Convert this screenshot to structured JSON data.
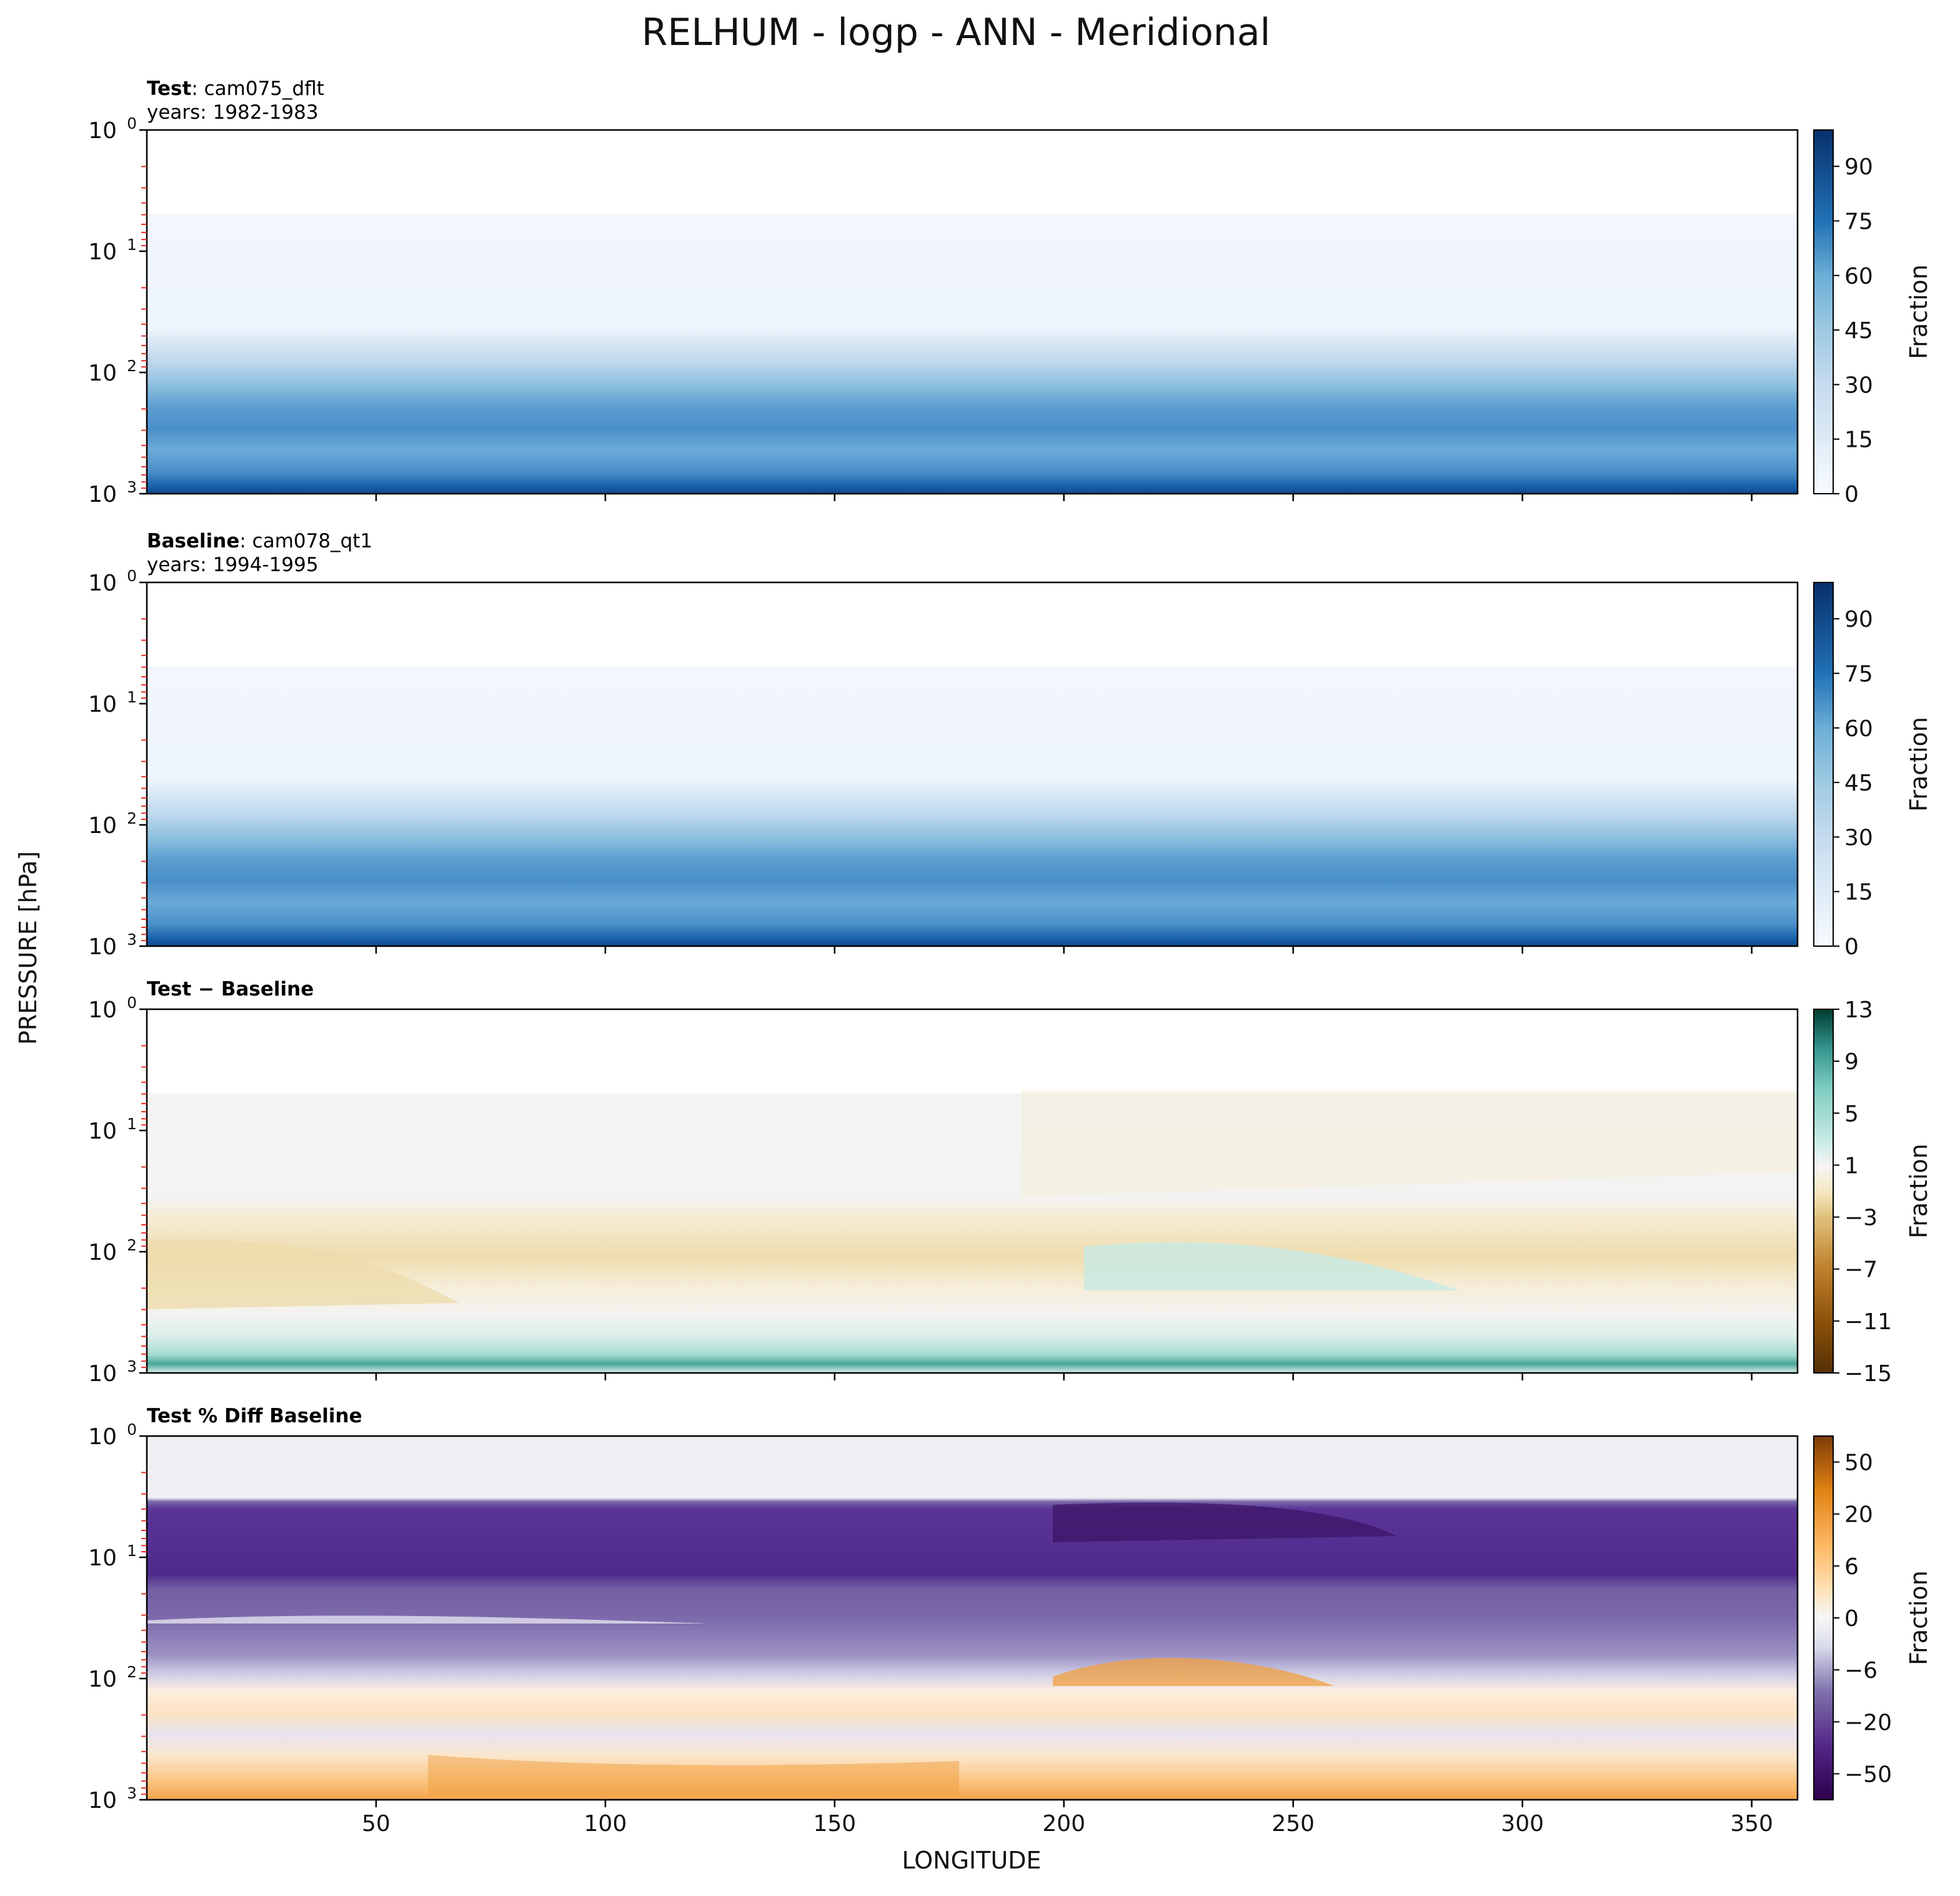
{
  "chart_data": {
    "title": "RELHUM - logp - ANN - Meridional",
    "type": "heatmap",
    "xlabel": "LONGITUDE",
    "ylabel": "PRESSURE [hPa]",
    "xlim": [
      0,
      360
    ],
    "x_ticks": [
      50,
      100,
      150,
      200,
      250,
      300,
      350
    ],
    "yscale": "log",
    "ylim": [
      1000,
      1
    ],
    "y_ticks": [
      {
        "base": "10",
        "exp": "0"
      },
      {
        "base": "10",
        "exp": "1"
      },
      {
        "base": "10",
        "exp": "2"
      },
      {
        "base": "10",
        "exp": "3"
      }
    ],
    "panels": [
      {
        "name": "test",
        "label_bold": "Test",
        "label_rest": ": cam075_dflt",
        "years": "years: 1982-1983",
        "colorbar": {
          "label": "Fraction",
          "min": 0,
          "max": 100,
          "ticks": [
            "0",
            "15",
            "30",
            "45",
            "60",
            "75",
            "90"
          ],
          "colors": [
            "#f7fbff",
            "#deebf7",
            "#c6dbef",
            "#9ecae1",
            "#6baed6",
            "#4292c6",
            "#2171b5",
            "#08519c",
            "#08306b"
          ]
        },
        "colormap": "Blues"
      },
      {
        "name": "baseline",
        "label_bold": "Baseline",
        "label_rest": ": cam078_qt1",
        "years": "years: 1994-1995",
        "colorbar": {
          "label": "Fraction",
          "min": 0,
          "max": 100,
          "ticks": [
            "0",
            "15",
            "30",
            "45",
            "60",
            "75",
            "90"
          ],
          "colors": [
            "#f7fbff",
            "#deebf7",
            "#c6dbef",
            "#9ecae1",
            "#6baed6",
            "#4292c6",
            "#2171b5",
            "#08519c",
            "#08306b"
          ]
        },
        "colormap": "Blues"
      },
      {
        "name": "difference",
        "label_bold": "Test − Baseline",
        "label_rest": "",
        "years": "",
        "colorbar": {
          "label": "Fraction",
          "min": -15,
          "max": 13,
          "ticks": [
            "−15",
            "−11",
            "−7",
            "−3",
            "1",
            "5",
            "9",
            "13"
          ],
          "colors": [
            "#6b3a08",
            "#8f5410",
            "#bf812d",
            "#dfc27d",
            "#f6e8c3",
            "#f5f5f5",
            "#c7eae5",
            "#80cdc1",
            "#35978f",
            "#01665e",
            "#003c30"
          ]
        },
        "colormap": "BrBG"
      },
      {
        "name": "percent-difference",
        "label_bold": "Test % Diff Baseline",
        "label_rest": "",
        "years": "",
        "colorbar": {
          "label": "Fraction",
          "min": -100,
          "max": 100,
          "ticks": [
            "−50",
            "−20",
            "−6",
            "0",
            "6",
            "20",
            "50"
          ],
          "colors": [
            "#2d004b",
            "#542788",
            "#8073ac",
            "#b2abd2",
            "#d8daeb",
            "#f7f7f7",
            "#fee0b6",
            "#fdb863",
            "#e08214",
            "#b35806",
            "#7f3b08"
          ]
        },
        "colormap": "PuOr_r"
      }
    ],
    "grid": false
  }
}
